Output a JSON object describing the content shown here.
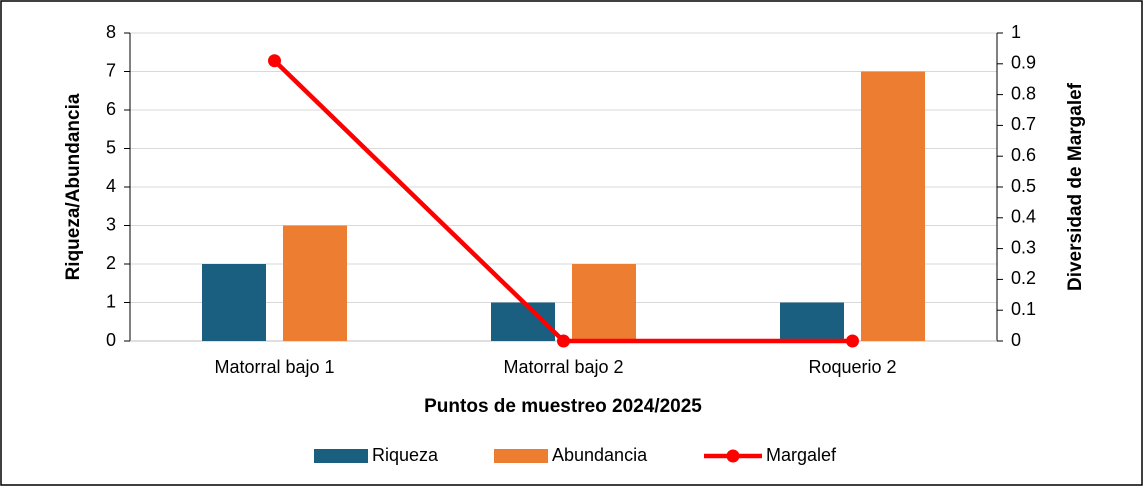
{
  "chart_data": {
    "type": "bar",
    "categories": [
      "Matorral bajo 1",
      "Matorral bajo 2",
      "Roquerio 2"
    ],
    "series": [
      {
        "name": "Riqueza",
        "color": "#1b5f80",
        "values": [
          2,
          1,
          1
        ]
      },
      {
        "name": "Abundancia",
        "color": "#ed7d31",
        "values": [
          3,
          2,
          7
        ]
      },
      {
        "name": "Margalef",
        "color": "#ff0000",
        "type": "line",
        "axis": "y2",
        "values": [
          0.91,
          0,
          0
        ]
      }
    ],
    "ylim": [
      0,
      8
    ],
    "yticks": [
      0,
      1,
      2,
      3,
      4,
      5,
      6,
      7,
      8
    ],
    "y2lim": [
      0,
      1
    ],
    "y2ticks": [
      0,
      0.1,
      0.2,
      0.3,
      0.4,
      0.5,
      0.6,
      0.7,
      0.8,
      0.9,
      1
    ],
    "ylabel": "Riqueza/Abundancia",
    "y2label": "Diversidad de Margalef",
    "xlabel": "Puntos de muestreo 2024/2025",
    "grid": true,
    "legend": "bottom"
  }
}
